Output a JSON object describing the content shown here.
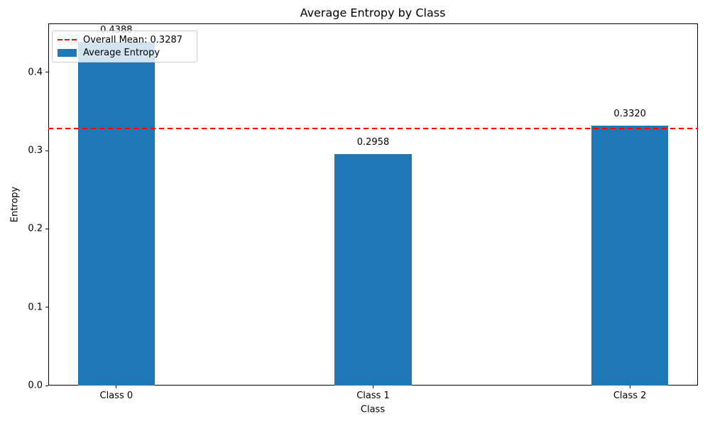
{
  "chart_data": {
    "type": "bar",
    "title": "Average Entropy by Class",
    "xlabel": "Class",
    "ylabel": "Entropy",
    "categories": [
      "Class 0",
      "Class 1",
      "Class 2"
    ],
    "series": [
      {
        "name": "Average Entropy",
        "values": [
          0.4388,
          0.2958,
          0.332
        ]
      }
    ],
    "value_labels": [
      "0.4388",
      "0.2958",
      "0.3320"
    ],
    "overall_mean": {
      "value": 0.3287,
      "label": "Overall Mean: 0.3287",
      "color": "#ff0000",
      "line_style": "dashed"
    },
    "bar_color": "#1f77b4",
    "yticks": [
      0,
      0.1,
      0.2,
      0.3,
      0.4
    ],
    "ytick_labels": [
      "0.0",
      "0.1",
      "0.2",
      "0.3",
      "0.4"
    ],
    "ylim": [
      0,
      0.4625
    ],
    "xlim": [
      -0.265,
      2.265
    ],
    "bar_width_units": 0.3,
    "grid": false,
    "legend": {
      "position": "upper-left",
      "entries": [
        {
          "swatch": "red-dashed-line",
          "label": "Overall Mean: 0.3287"
        },
        {
          "swatch": "blue-filled-rect",
          "label": "Average Entropy"
        }
      ]
    }
  }
}
